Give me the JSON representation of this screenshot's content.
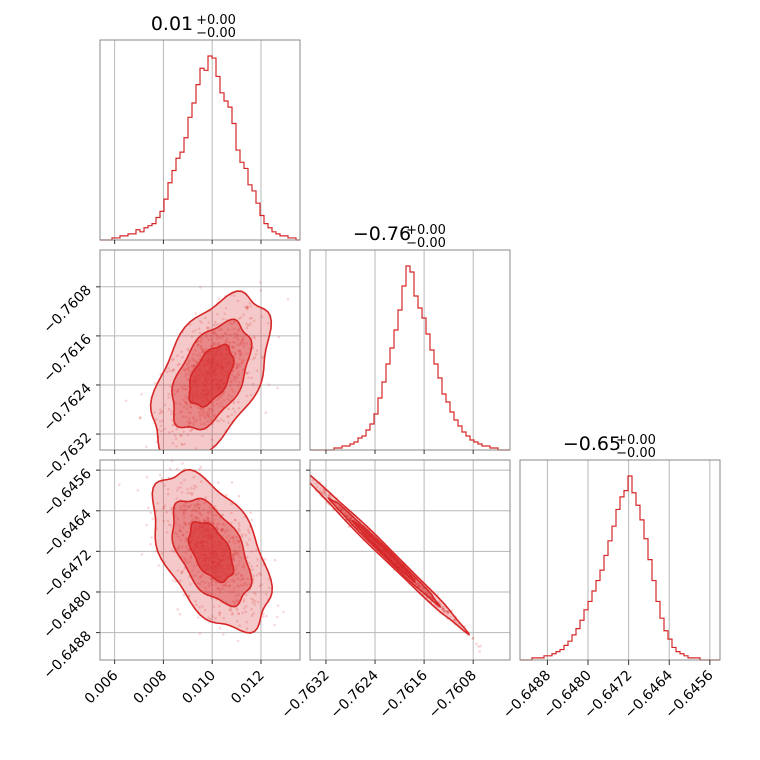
{
  "chart_data": {
    "type": "corner",
    "color": "#d62728",
    "grid": true,
    "parameters": [
      {
        "title_main": "0.01",
        "title_sup": "+0.00",
        "title_sub": "−0.00",
        "range": [
          0.0054,
          0.0136
        ],
        "ticks": [
          0.006,
          0.008,
          0.01,
          0.012
        ],
        "tick_labels": [
          "0.006",
          "0.008",
          "0.010",
          "0.012"
        ],
        "hist_counts": [
          0,
          0,
          0,
          1,
          1,
          2,
          2,
          3,
          3,
          5,
          4,
          6,
          7,
          8,
          11,
          14,
          20,
          28,
          34,
          40,
          43,
          50,
          60,
          67,
          76,
          84,
          83,
          90,
          89,
          80,
          72,
          68,
          65,
          57,
          44,
          38,
          35,
          27,
          24,
          18,
          12,
          8,
          6,
          4,
          3,
          2,
          2,
          1,
          1,
          0
        ]
      },
      {
        "title_main": "−0.76",
        "title_sup": "+0.00",
        "title_sub": "−0.00",
        "range": [
          -0.76346,
          -0.7602
        ],
        "ticks": [
          -0.7632,
          -0.7624,
          -0.7616,
          -0.7608
        ],
        "tick_labels": [
          "−0.7632",
          "−0.7624",
          "−0.7616",
          "−0.7608"
        ],
        "hist_counts": [
          0,
          0,
          0,
          0,
          0,
          0,
          1,
          1,
          2,
          2,
          3,
          4,
          6,
          7,
          10,
          13,
          18,
          26,
          34,
          43,
          51,
          60,
          70,
          82,
          92,
          89,
          77,
          71,
          66,
          58,
          50,
          43,
          36,
          28,
          24,
          19,
          15,
          12,
          9,
          7,
          5,
          4,
          3,
          2,
          2,
          1,
          1,
          0,
          0,
          0
        ]
      },
      {
        "title_main": "−0.65",
        "title_sup": "+0.00",
        "title_sub": "−0.00",
        "range": [
          -0.64934,
          -0.6454
        ],
        "ticks": [
          -0.6488,
          -0.648,
          -0.6472,
          -0.6464,
          -0.6456
        ],
        "tick_labels": [
          "−0.6488",
          "−0.6480",
          "−0.6472",
          "−0.6464",
          "−0.6456"
        ],
        "hist_counts": [
          0,
          0,
          0,
          1,
          1,
          1,
          2,
          2,
          3,
          4,
          5,
          7,
          9,
          12,
          15,
          19,
          24,
          28,
          33,
          38,
          43,
          50,
          57,
          64,
          72,
          78,
          81,
          88,
          80,
          74,
          67,
          58,
          48,
          38,
          28,
          20,
          14,
          10,
          6,
          4,
          3,
          2,
          1,
          1,
          1,
          0,
          0,
          0,
          0,
          0
        ]
      }
    ],
    "pairs": [
      {
        "row": 1,
        "col": 0,
        "mean": [
          0.00995,
          -0.76225
        ],
        "sd": [
          0.001,
          0.00055
        ],
        "corr": 0.5,
        "ytick_labels": [
          "−0.7608",
          "−0.7616",
          "−0.7624",
          "−0.7632"
        ]
      },
      {
        "row": 2,
        "col": 0,
        "mean": [
          0.00995,
          -0.6472
        ],
        "sd": [
          0.001,
          0.00065
        ],
        "corr": -0.5,
        "ytick_labels": [
          "−0.6456",
          "−0.6464",
          "−0.6472",
          "−0.6480",
          "−0.6488"
        ]
      },
      {
        "row": 2,
        "col": 1,
        "mean": [
          -0.76225,
          -0.6472
        ],
        "sd": [
          0.00055,
          0.00065
        ],
        "corr": -0.995,
        "ytick_labels": []
      }
    ]
  }
}
